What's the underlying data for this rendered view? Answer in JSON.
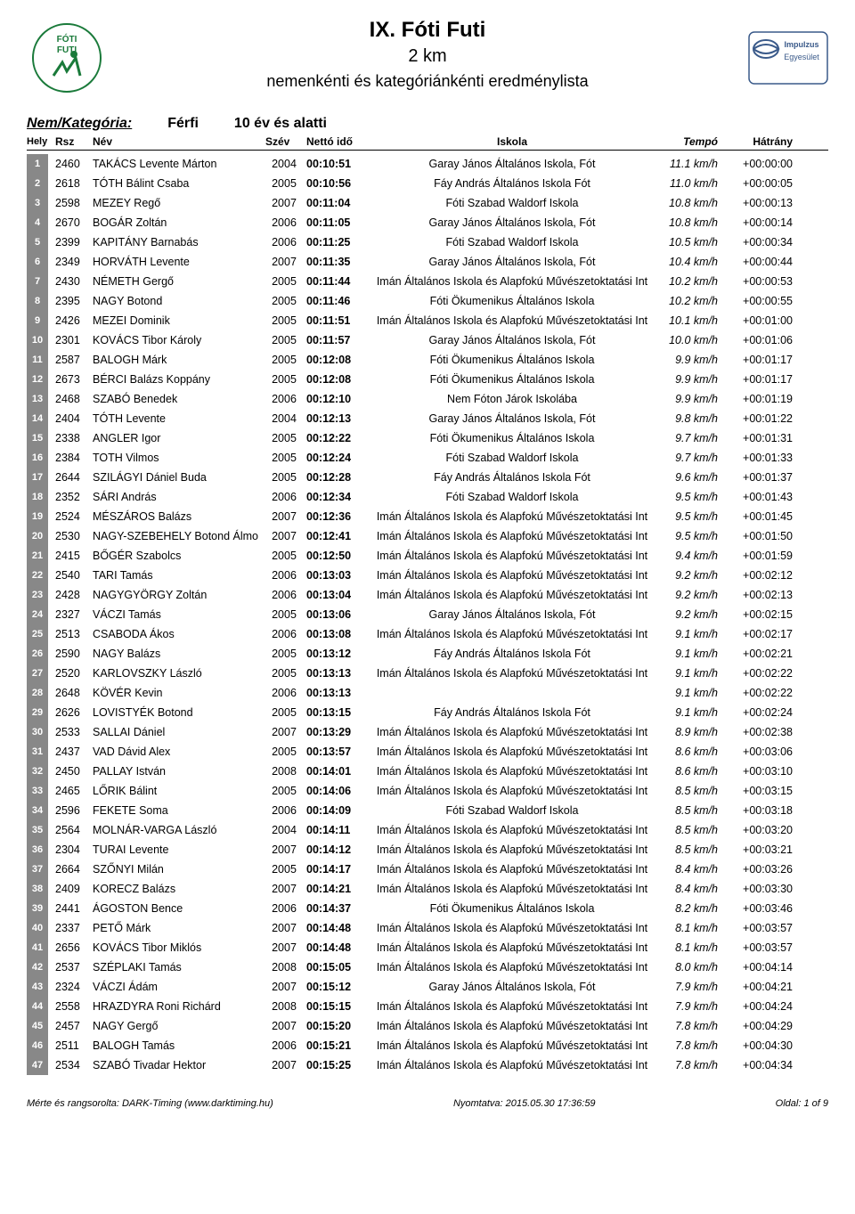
{
  "header": {
    "title": "IX. Fóti Futi",
    "distance": "2 km",
    "subtitle": "nemenkénti és kategóriánkénti eredménylista",
    "logo_left_label": "FÓTI FUTI",
    "logo_right_label": "Impulzus Egyesület"
  },
  "category": {
    "label": "Nem/Kategória:",
    "gender": "Férfi",
    "age": "10 év és alatti"
  },
  "columns": {
    "hely": "Hely",
    "rsz": "Rsz",
    "nev": "Név",
    "szev": "Szév",
    "netto": "Nettó idő",
    "iskola": "Iskola",
    "tempo": "Tempó",
    "hatrany": "Hátrány"
  },
  "rows": [
    {
      "p": "1",
      "rsz": "2460",
      "nev": "TAKÁCS Levente Márton",
      "szev": "2004",
      "time": "00:10:51",
      "isk": "Garay János Általános Iskola, Fót",
      "tempo": "11.1 km/h",
      "gap": "+00:00:00"
    },
    {
      "p": "2",
      "rsz": "2618",
      "nev": "TÓTH Bálint Csaba",
      "szev": "2005",
      "time": "00:10:56",
      "isk": "Fáy András Általános Iskola Fót",
      "tempo": "11.0 km/h",
      "gap": "+00:00:05"
    },
    {
      "p": "3",
      "rsz": "2598",
      "nev": "MEZEY Regő",
      "szev": "2007",
      "time": "00:11:04",
      "isk": "Fóti Szabad Waldorf Iskola",
      "tempo": "10.8 km/h",
      "gap": "+00:00:13"
    },
    {
      "p": "4",
      "rsz": "2670",
      "nev": "BOGÁR Zoltán",
      "szev": "2006",
      "time": "00:11:05",
      "isk": "Garay János Általános Iskola, Fót",
      "tempo": "10.8 km/h",
      "gap": "+00:00:14"
    },
    {
      "p": "5",
      "rsz": "2399",
      "nev": "KAPITÁNY Barnabás",
      "szev": "2006",
      "time": "00:11:25",
      "isk": "Fóti Szabad Waldorf Iskola",
      "tempo": "10.5 km/h",
      "gap": "+00:00:34"
    },
    {
      "p": "6",
      "rsz": "2349",
      "nev": "HORVÁTH Levente",
      "szev": "2007",
      "time": "00:11:35",
      "isk": "Garay János Általános Iskola, Fót",
      "tempo": "10.4 km/h",
      "gap": "+00:00:44"
    },
    {
      "p": "7",
      "rsz": "2430",
      "nev": "NÉMETH Gergő",
      "szev": "2005",
      "time": "00:11:44",
      "isk": "Imán Általános Iskola és Alapfokú Művészetoktatási Int",
      "tempo": "10.2 km/h",
      "gap": "+00:00:53"
    },
    {
      "p": "8",
      "rsz": "2395",
      "nev": "NAGY Botond",
      "szev": "2005",
      "time": "00:11:46",
      "isk": "Fóti Ökumenikus Általános Iskola",
      "tempo": "10.2 km/h",
      "gap": "+00:00:55"
    },
    {
      "p": "9",
      "rsz": "2426",
      "nev": "MEZEI Dominik",
      "szev": "2005",
      "time": "00:11:51",
      "isk": "Imán Általános Iskola és Alapfokú Művészetoktatási Int",
      "tempo": "10.1 km/h",
      "gap": "+00:01:00"
    },
    {
      "p": "10",
      "rsz": "2301",
      "nev": "KOVÁCS Tibor Károly",
      "szev": "2005",
      "time": "00:11:57",
      "isk": "Garay János Általános Iskola, Fót",
      "tempo": "10.0 km/h",
      "gap": "+00:01:06"
    },
    {
      "p": "11",
      "rsz": "2587",
      "nev": "BALOGH Márk",
      "szev": "2005",
      "time": "00:12:08",
      "isk": "Fóti Ökumenikus Általános Iskola",
      "tempo": "9.9 km/h",
      "gap": "+00:01:17"
    },
    {
      "p": "12",
      "rsz": "2673",
      "nev": "BÉRCI Balázs Koppány",
      "szev": "2005",
      "time": "00:12:08",
      "isk": "Fóti Ökumenikus Általános Iskola",
      "tempo": "9.9 km/h",
      "gap": "+00:01:17"
    },
    {
      "p": "13",
      "rsz": "2468",
      "nev": "SZABÓ Benedek",
      "szev": "2006",
      "time": "00:12:10",
      "isk": "Nem Fóton Járok Iskolába",
      "tempo": "9.9 km/h",
      "gap": "+00:01:19"
    },
    {
      "p": "14",
      "rsz": "2404",
      "nev": "TÓTH Levente",
      "szev": "2004",
      "time": "00:12:13",
      "isk": "Garay János Általános Iskola, Fót",
      "tempo": "9.8 km/h",
      "gap": "+00:01:22"
    },
    {
      "p": "15",
      "rsz": "2338",
      "nev": "ANGLER Igor",
      "szev": "2005",
      "time": "00:12:22",
      "isk": "Fóti Ökumenikus Általános Iskola",
      "tempo": "9.7 km/h",
      "gap": "+00:01:31"
    },
    {
      "p": "16",
      "rsz": "2384",
      "nev": "TOTH Vilmos",
      "szev": "2005",
      "time": "00:12:24",
      "isk": "Fóti Szabad Waldorf Iskola",
      "tempo": "9.7 km/h",
      "gap": "+00:01:33"
    },
    {
      "p": "17",
      "rsz": "2644",
      "nev": "SZILÁGYI Dániel Buda",
      "szev": "2005",
      "time": "00:12:28",
      "isk": "Fáy András Általános Iskola Fót",
      "tempo": "9.6 km/h",
      "gap": "+00:01:37"
    },
    {
      "p": "18",
      "rsz": "2352",
      "nev": "SÁRI András",
      "szev": "2006",
      "time": "00:12:34",
      "isk": "Fóti Szabad Waldorf Iskola",
      "tempo": "9.5 km/h",
      "gap": "+00:01:43"
    },
    {
      "p": "19",
      "rsz": "2524",
      "nev": "MÉSZÁROS Balázs",
      "szev": "2007",
      "time": "00:12:36",
      "isk": "Imán Általános Iskola és Alapfokú Művészetoktatási Int",
      "tempo": "9.5 km/h",
      "gap": "+00:01:45"
    },
    {
      "p": "20",
      "rsz": "2530",
      "nev": "NAGY-SZEBEHELY Botond Álmo",
      "szev": "2007",
      "time": "00:12:41",
      "isk": "Imán Általános Iskola és Alapfokú Művészetoktatási Int",
      "tempo": "9.5 km/h",
      "gap": "+00:01:50"
    },
    {
      "p": "21",
      "rsz": "2415",
      "nev": "BŐGÉR Szabolcs",
      "szev": "2005",
      "time": "00:12:50",
      "isk": "Imán Általános Iskola és Alapfokú Művészetoktatási Int",
      "tempo": "9.4 km/h",
      "gap": "+00:01:59"
    },
    {
      "p": "22",
      "rsz": "2540",
      "nev": "TARI Tamás",
      "szev": "2006",
      "time": "00:13:03",
      "isk": "Imán Általános Iskola és Alapfokú Művészetoktatási Int",
      "tempo": "9.2 km/h",
      "gap": "+00:02:12"
    },
    {
      "p": "23",
      "rsz": "2428",
      "nev": "NAGYGYÖRGY Zoltán",
      "szev": "2006",
      "time": "00:13:04",
      "isk": "Imán Általános Iskola és Alapfokú Művészetoktatási Int",
      "tempo": "9.2 km/h",
      "gap": "+00:02:13"
    },
    {
      "p": "24",
      "rsz": "2327",
      "nev": "VÁCZI Tamás",
      "szev": "2005",
      "time": "00:13:06",
      "isk": "Garay János Általános Iskola, Fót",
      "tempo": "9.2 km/h",
      "gap": "+00:02:15"
    },
    {
      "p": "25",
      "rsz": "2513",
      "nev": "CSABODA Ákos",
      "szev": "2006",
      "time": "00:13:08",
      "isk": "Imán Általános Iskola és Alapfokú Művészetoktatási Int",
      "tempo": "9.1 km/h",
      "gap": "+00:02:17"
    },
    {
      "p": "26",
      "rsz": "2590",
      "nev": "NAGY Balázs",
      "szev": "2005",
      "time": "00:13:12",
      "isk": "Fáy András Általános Iskola Fót",
      "tempo": "9.1 km/h",
      "gap": "+00:02:21"
    },
    {
      "p": "27",
      "rsz": "2520",
      "nev": "KARLOVSZKY László",
      "szev": "2005",
      "time": "00:13:13",
      "isk": "Imán Általános Iskola és Alapfokú Művészetoktatási Int",
      "tempo": "9.1 km/h",
      "gap": "+00:02:22"
    },
    {
      "p": "28",
      "rsz": "2648",
      "nev": "KÖVÉR Kevin",
      "szev": "2006",
      "time": "00:13:13",
      "isk": "",
      "tempo": "9.1 km/h",
      "gap": "+00:02:22"
    },
    {
      "p": "29",
      "rsz": "2626",
      "nev": "LOVISTYÉK Botond",
      "szev": "2005",
      "time": "00:13:15",
      "isk": "Fáy András Általános Iskola Fót",
      "tempo": "9.1 km/h",
      "gap": "+00:02:24"
    },
    {
      "p": "30",
      "rsz": "2533",
      "nev": "SALLAI Dániel",
      "szev": "2007",
      "time": "00:13:29",
      "isk": "Imán Általános Iskola és Alapfokú Művészetoktatási Int",
      "tempo": "8.9 km/h",
      "gap": "+00:02:38"
    },
    {
      "p": "31",
      "rsz": "2437",
      "nev": "VAD Dávid Alex",
      "szev": "2005",
      "time": "00:13:57",
      "isk": "Imán Általános Iskola és Alapfokú Művészetoktatási Int",
      "tempo": "8.6 km/h",
      "gap": "+00:03:06"
    },
    {
      "p": "32",
      "rsz": "2450",
      "nev": "PALLAY István",
      "szev": "2008",
      "time": "00:14:01",
      "isk": "Imán Általános Iskola és Alapfokú Művészetoktatási Int",
      "tempo": "8.6 km/h",
      "gap": "+00:03:10"
    },
    {
      "p": "33",
      "rsz": "2465",
      "nev": "LŐRIK Bálint",
      "szev": "2005",
      "time": "00:14:06",
      "isk": "Imán Általános Iskola és Alapfokú Művészetoktatási Int",
      "tempo": "8.5 km/h",
      "gap": "+00:03:15"
    },
    {
      "p": "34",
      "rsz": "2596",
      "nev": "FEKETE Soma",
      "szev": "2006",
      "time": "00:14:09",
      "isk": "Fóti Szabad Waldorf Iskola",
      "tempo": "8.5 km/h",
      "gap": "+00:03:18"
    },
    {
      "p": "35",
      "rsz": "2564",
      "nev": "MOLNÁR-VARGA László",
      "szev": "2004",
      "time": "00:14:11",
      "isk": "Imán Általános Iskola és Alapfokú Művészetoktatási Int",
      "tempo": "8.5 km/h",
      "gap": "+00:03:20"
    },
    {
      "p": "36",
      "rsz": "2304",
      "nev": "TURAI Levente",
      "szev": "2007",
      "time": "00:14:12",
      "isk": "Imán Általános Iskola és Alapfokú Művészetoktatási Int",
      "tempo": "8.5 km/h",
      "gap": "+00:03:21"
    },
    {
      "p": "37",
      "rsz": "2664",
      "nev": "SZŐNYI Milán",
      "szev": "2005",
      "time": "00:14:17",
      "isk": "Imán Általános Iskola és Alapfokú Művészetoktatási Int",
      "tempo": "8.4 km/h",
      "gap": "+00:03:26"
    },
    {
      "p": "38",
      "rsz": "2409",
      "nev": "KORECZ Balázs",
      "szev": "2007",
      "time": "00:14:21",
      "isk": "Imán Általános Iskola és Alapfokú Művészetoktatási Int",
      "tempo": "8.4 km/h",
      "gap": "+00:03:30"
    },
    {
      "p": "39",
      "rsz": "2441",
      "nev": "ÁGOSTON Bence",
      "szev": "2006",
      "time": "00:14:37",
      "isk": "Fóti Ökumenikus Általános Iskola",
      "tempo": "8.2 km/h",
      "gap": "+00:03:46"
    },
    {
      "p": "40",
      "rsz": "2337",
      "nev": "PETŐ Márk",
      "szev": "2007",
      "time": "00:14:48",
      "isk": "Imán Általános Iskola és Alapfokú Művészetoktatási Int",
      "tempo": "8.1 km/h",
      "gap": "+00:03:57"
    },
    {
      "p": "41",
      "rsz": "2656",
      "nev": "KOVÁCS Tibor Miklós",
      "szev": "2007",
      "time": "00:14:48",
      "isk": "Imán Általános Iskola és Alapfokú Művészetoktatási Int",
      "tempo": "8.1 km/h",
      "gap": "+00:03:57"
    },
    {
      "p": "42",
      "rsz": "2537",
      "nev": "SZÉPLAKI Tamás",
      "szev": "2008",
      "time": "00:15:05",
      "isk": "Imán Általános Iskola és Alapfokú Művészetoktatási Int",
      "tempo": "8.0 km/h",
      "gap": "+00:04:14"
    },
    {
      "p": "43",
      "rsz": "2324",
      "nev": "VÁCZI Ádám",
      "szev": "2007",
      "time": "00:15:12",
      "isk": "Garay János Általános Iskola, Fót",
      "tempo": "7.9 km/h",
      "gap": "+00:04:21"
    },
    {
      "p": "44",
      "rsz": "2558",
      "nev": "HRAZDYRA Roni Richárd",
      "szev": "2008",
      "time": "00:15:15",
      "isk": "Imán Általános Iskola és Alapfokú Művészetoktatási Int",
      "tempo": "7.9 km/h",
      "gap": "+00:04:24"
    },
    {
      "p": "45",
      "rsz": "2457",
      "nev": "NAGY Gergő",
      "szev": "2007",
      "time": "00:15:20",
      "isk": "Imán Általános Iskola és Alapfokú Művészetoktatási Int",
      "tempo": "7.8 km/h",
      "gap": "+00:04:29"
    },
    {
      "p": "46",
      "rsz": "2511",
      "nev": "BALOGH Tamás",
      "szev": "2006",
      "time": "00:15:21",
      "isk": "Imán Általános Iskola és Alapfokú Művészetoktatási Int",
      "tempo": "7.8 km/h",
      "gap": "+00:04:30"
    },
    {
      "p": "47",
      "rsz": "2534",
      "nev": "SZABÓ Tivadar Hektor",
      "szev": "2007",
      "time": "00:15:25",
      "isk": "Imán Általános Iskola és Alapfokú Művészetoktatási Int",
      "tempo": "7.8 km/h",
      "gap": "+00:04:34"
    }
  ],
  "footer": {
    "left": "Mérte és rangsorolta: DARK-Timing  (www.darktiming.hu)",
    "center": "Nyomtatva: 2015.05.30 17:36:59",
    "right": "Oldal: 1 of 9"
  },
  "style": {
    "badge_bg": "#888888",
    "badge_fg": "#ffffff",
    "text_color": "#000000",
    "page_bg": "#ffffff"
  }
}
